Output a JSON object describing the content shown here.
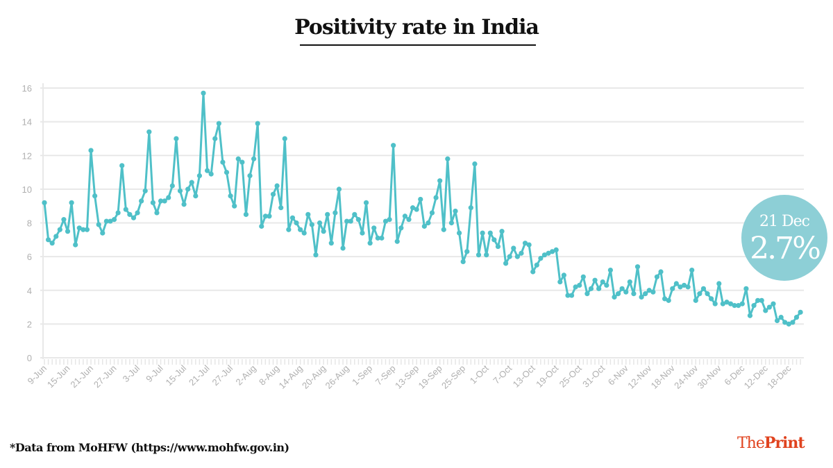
{
  "chart_data": {
    "type": "line",
    "title": "Positivity rate in India",
    "xlabel": "",
    "ylabel": "",
    "ylim": [
      0,
      16
    ],
    "yticks": [
      0,
      2,
      4,
      6,
      8,
      10,
      12,
      14,
      16
    ],
    "grid": true,
    "line_color": "#4fc0c8",
    "xtick_labels": [
      "9-Jun",
      "15-Jun",
      "21-Jun",
      "27-Jun",
      "3-Jul",
      "9-Jul",
      "15-Jul",
      "21-Jul",
      "27-Jul",
      "2-Aug",
      "8-Aug",
      "14-Aug",
      "20-Aug",
      "26-Aug",
      "1-Sep",
      "7-Sep",
      "13-Sep",
      "19-Sep",
      "25-Sep",
      "1-Oct",
      "7-Oct",
      "13-Oct",
      "19-Oct",
      "25-Oct",
      "31-Oct",
      "6-Nov",
      "12-Nov",
      "18-Nov",
      "24-Nov",
      "30-Nov",
      "6-Dec",
      "12-Dec",
      "18-Dec"
    ],
    "x_range": [
      "9-Jun",
      "21-Dec"
    ],
    "values": [
      9.2,
      7.0,
      6.8,
      7.2,
      7.6,
      8.2,
      7.5,
      9.2,
      6.7,
      7.7,
      7.6,
      7.6,
      12.3,
      9.6,
      7.9,
      7.4,
      8.1,
      8.1,
      8.2,
      8.6,
      11.4,
      8.8,
      8.5,
      8.3,
      8.6,
      9.3,
      9.9,
      13.4,
      9.2,
      8.6,
      9.3,
      9.3,
      9.5,
      10.2,
      13.0,
      9.9,
      9.1,
      10.0,
      10.4,
      9.6,
      10.8,
      15.7,
      11.1,
      10.9,
      13.0,
      13.9,
      11.6,
      11.0,
      9.6,
      9.0,
      11.8,
      11.6,
      8.5,
      10.8,
      11.8,
      13.9,
      7.8,
      8.4,
      8.4,
      9.7,
      10.2,
      8.9,
      13.0,
      7.6,
      8.3,
      8.0,
      7.6,
      7.4,
      8.5,
      7.9,
      6.1,
      8.0,
      7.5,
      8.5,
      6.8,
      8.6,
      10.0,
      6.5,
      8.1,
      8.1,
      8.5,
      8.2,
      7.4,
      9.2,
      6.8,
      7.7,
      7.1,
      7.1,
      8.1,
      8.2,
      12.6,
      6.9,
      7.7,
      8.4,
      8.2,
      8.9,
      8.8,
      9.4,
      7.8,
      8.0,
      8.6,
      9.5,
      10.5,
      7.6,
      11.8,
      8.0,
      8.7,
      7.4,
      5.7,
      6.3,
      8.9,
      11.5,
      6.1,
      7.4,
      6.1,
      7.4,
      7.0,
      6.6,
      7.5,
      5.6,
      6.0,
      6.5,
      6.0,
      6.2,
      6.8,
      6.7,
      5.1,
      5.5,
      5.9,
      6.1,
      6.2,
      6.3,
      6.4,
      4.5,
      4.9,
      3.7,
      3.7,
      4.2,
      4.3,
      4.8,
      3.8,
      4.1,
      4.6,
      4.1,
      4.5,
      4.3,
      5.2,
      3.6,
      3.8,
      4.1,
      3.9,
      4.5,
      3.8,
      5.4,
      3.6,
      3.8,
      4.0,
      3.9,
      4.8,
      5.1,
      3.5,
      3.4,
      4.1,
      4.4,
      4.2,
      4.3,
      4.2,
      5.2,
      3.4,
      3.8,
      4.1,
      3.8,
      3.5,
      3.2,
      4.4,
      3.2,
      3.3,
      3.2,
      3.1,
      3.1,
      3.2,
      4.1,
      2.5,
      3.1,
      3.4,
      3.4,
      2.8,
      3.0,
      3.2,
      2.2,
      2.4,
      2.1,
      2.0,
      2.1,
      2.4,
      2.7
    ]
  },
  "callout": {
    "date": "21 Dec",
    "value": "2.7%",
    "color": "#8dcfd6"
  },
  "footnote": "*Data from MoHFW (https://www.mohfw.gov.in)",
  "logo": {
    "part1": "The",
    "part2": "Print",
    "color": "#e0431f"
  }
}
